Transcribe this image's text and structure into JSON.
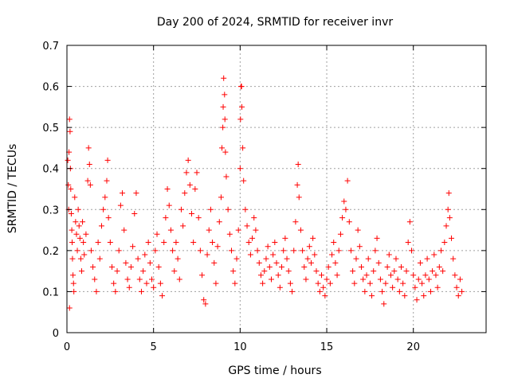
{
  "chart_data": {
    "type": "scatter",
    "title": "Day 200 of 2024, SRMTID for receiver invr",
    "xlabel": "GPS time / hours",
    "ylabel": "SRMTID / TECUs",
    "xlim": [
      0,
      24.2
    ],
    "ylim": [
      0,
      0.7
    ],
    "xticks": [
      0,
      5,
      10,
      15,
      20
    ],
    "yticks": [
      0,
      0.1,
      0.2,
      0.3,
      0.4,
      0.5,
      0.6,
      0.7
    ],
    "xtick_labels": [
      "0",
      "5",
      "10",
      "15",
      "20"
    ],
    "ytick_labels": [
      "0",
      "0.1",
      "0.2",
      "0.3",
      "0.4",
      "0.5",
      "0.6",
      "0.7"
    ],
    "grid": true,
    "marker": "+",
    "color": "#ff0000",
    "series": [
      {
        "name": "SRMTID",
        "points": [
          [
            0.05,
            0.42
          ],
          [
            0.08,
            0.36
          ],
          [
            0.1,
            0.3
          ],
          [
            0.12,
            0.44
          ],
          [
            0.15,
            0.52
          ],
          [
            0.18,
            0.49
          ],
          [
            0.2,
            0.4
          ],
          [
            0.22,
            0.35
          ],
          [
            0.25,
            0.29
          ],
          [
            0.28,
            0.25
          ],
          [
            0.3,
            0.22
          ],
          [
            0.32,
            0.18
          ],
          [
            0.35,
            0.14
          ],
          [
            0.38,
            0.12
          ],
          [
            0.4,
            0.1
          ],
          [
            0.15,
            0.06
          ],
          [
            0.45,
            0.33
          ],
          [
            0.5,
            0.27
          ],
          [
            0.55,
            0.24
          ],
          [
            0.6,
            0.2
          ],
          [
            0.65,
            0.3
          ],
          [
            0.7,
            0.26
          ],
          [
            0.75,
            0.23
          ],
          [
            0.8,
            0.18
          ],
          [
            0.85,
            0.15
          ],
          [
            0.9,
            0.27
          ],
          [
            0.95,
            0.22
          ],
          [
            1.0,
            0.19
          ],
          [
            1.1,
            0.24
          ],
          [
            1.2,
            0.37
          ],
          [
            1.25,
            0.45
          ],
          [
            1.3,
            0.41
          ],
          [
            1.35,
            0.36
          ],
          [
            1.4,
            0.2
          ],
          [
            1.5,
            0.16
          ],
          [
            1.6,
            0.13
          ],
          [
            1.7,
            0.1
          ],
          [
            1.8,
            0.22
          ],
          [
            1.9,
            0.18
          ],
          [
            2.0,
            0.26
          ],
          [
            2.1,
            0.3
          ],
          [
            2.2,
            0.33
          ],
          [
            2.3,
            0.37
          ],
          [
            2.35,
            0.42
          ],
          [
            2.4,
            0.28
          ],
          [
            2.5,
            0.22
          ],
          [
            2.6,
            0.16
          ],
          [
            2.7,
            0.12
          ],
          [
            2.8,
            0.1
          ],
          [
            2.9,
            0.15
          ],
          [
            3.0,
            0.2
          ],
          [
            3.1,
            0.31
          ],
          [
            3.2,
            0.34
          ],
          [
            3.3,
            0.25
          ],
          [
            3.4,
            0.17
          ],
          [
            3.5,
            0.13
          ],
          [
            3.6,
            0.11
          ],
          [
            3.7,
            0.16
          ],
          [
            3.8,
            0.21
          ],
          [
            3.9,
            0.29
          ],
          [
            4.0,
            0.34
          ],
          [
            4.1,
            0.18
          ],
          [
            4.2,
            0.13
          ],
          [
            4.3,
            0.1
          ],
          [
            4.4,
            0.15
          ],
          [
            4.5,
            0.19
          ],
          [
            4.6,
            0.12
          ],
          [
            4.7,
            0.22
          ],
          [
            4.8,
            0.17
          ],
          [
            4.9,
            0.13
          ],
          [
            5.0,
            0.11
          ],
          [
            5.1,
            0.2
          ],
          [
            5.2,
            0.24
          ],
          [
            5.3,
            0.16
          ],
          [
            5.4,
            0.12
          ],
          [
            5.5,
            0.09
          ],
          [
            5.6,
            0.22
          ],
          [
            5.7,
            0.28
          ],
          [
            5.8,
            0.35
          ],
          [
            5.9,
            0.31
          ],
          [
            6.0,
            0.25
          ],
          [
            6.1,
            0.2
          ],
          [
            6.2,
            0.15
          ],
          [
            6.3,
            0.22
          ],
          [
            6.4,
            0.18
          ],
          [
            6.5,
            0.13
          ],
          [
            6.6,
            0.3
          ],
          [
            6.7,
            0.26
          ],
          [
            6.8,
            0.34
          ],
          [
            6.9,
            0.39
          ],
          [
            7.0,
            0.42
          ],
          [
            7.1,
            0.36
          ],
          [
            7.2,
            0.29
          ],
          [
            7.3,
            0.22
          ],
          [
            7.4,
            0.35
          ],
          [
            7.5,
            0.39
          ],
          [
            7.6,
            0.28
          ],
          [
            7.7,
            0.2
          ],
          [
            7.8,
            0.14
          ],
          [
            7.9,
            0.08
          ],
          [
            8.0,
            0.07
          ],
          [
            8.1,
            0.19
          ],
          [
            8.2,
            0.25
          ],
          [
            8.3,
            0.3
          ],
          [
            8.4,
            0.22
          ],
          [
            8.5,
            0.17
          ],
          [
            8.6,
            0.12
          ],
          [
            8.7,
            0.21
          ],
          [
            8.8,
            0.27
          ],
          [
            8.9,
            0.33
          ],
          [
            8.95,
            0.45
          ],
          [
            9.0,
            0.5
          ],
          [
            9.02,
            0.55
          ],
          [
            9.05,
            0.62
          ],
          [
            9.1,
            0.58
          ],
          [
            9.12,
            0.52
          ],
          [
            9.15,
            0.44
          ],
          [
            9.2,
            0.38
          ],
          [
            9.3,
            0.3
          ],
          [
            9.4,
            0.24
          ],
          [
            9.5,
            0.2
          ],
          [
            9.6,
            0.15
          ],
          [
            9.7,
            0.12
          ],
          [
            9.8,
            0.18
          ],
          [
            9.9,
            0.25
          ],
          [
            10.0,
            0.4
          ],
          [
            10.02,
            0.52
          ],
          [
            10.05,
            0.6
          ],
          [
            10.08,
            0.6
          ],
          [
            10.1,
            0.55
          ],
          [
            10.15,
            0.45
          ],
          [
            10.2,
            0.37
          ],
          [
            10.3,
            0.3
          ],
          [
            10.4,
            0.26
          ],
          [
            10.5,
            0.22
          ],
          [
            10.6,
            0.19
          ],
          [
            10.7,
            0.23
          ],
          [
            10.8,
            0.28
          ],
          [
            10.9,
            0.25
          ],
          [
            11.0,
            0.2
          ],
          [
            11.1,
            0.17
          ],
          [
            11.2,
            0.14
          ],
          [
            11.3,
            0.12
          ],
          [
            11.4,
            0.15
          ],
          [
            11.5,
            0.18
          ],
          [
            11.6,
            0.21
          ],
          [
            11.7,
            0.16
          ],
          [
            11.8,
            0.13
          ],
          [
            11.9,
            0.19
          ],
          [
            12.0,
            0.22
          ],
          [
            12.1,
            0.17
          ],
          [
            12.2,
            0.14
          ],
          [
            12.3,
            0.11
          ],
          [
            12.4,
            0.16
          ],
          [
            12.5,
            0.2
          ],
          [
            12.6,
            0.23
          ],
          [
            12.7,
            0.18
          ],
          [
            12.8,
            0.15
          ],
          [
            12.9,
            0.12
          ],
          [
            13.0,
            0.1
          ],
          [
            13.1,
            0.2
          ],
          [
            13.2,
            0.27
          ],
          [
            13.3,
            0.36
          ],
          [
            13.35,
            0.41
          ],
          [
            13.4,
            0.33
          ],
          [
            13.5,
            0.25
          ],
          [
            13.6,
            0.2
          ],
          [
            13.7,
            0.16
          ],
          [
            13.8,
            0.13
          ],
          [
            13.9,
            0.18
          ],
          [
            14.0,
            0.21
          ],
          [
            14.1,
            0.17
          ],
          [
            14.2,
            0.23
          ],
          [
            14.3,
            0.19
          ],
          [
            14.4,
            0.15
          ],
          [
            14.5,
            0.12
          ],
          [
            14.6,
            0.1
          ],
          [
            14.7,
            0.14
          ],
          [
            14.8,
            0.11
          ],
          [
            14.9,
            0.09
          ],
          [
            15.0,
            0.13
          ],
          [
            15.1,
            0.16
          ],
          [
            15.2,
            0.12
          ],
          [
            15.3,
            0.19
          ],
          [
            15.4,
            0.22
          ],
          [
            15.5,
            0.17
          ],
          [
            15.6,
            0.14
          ],
          [
            15.7,
            0.2
          ],
          [
            15.8,
            0.24
          ],
          [
            15.9,
            0.28
          ],
          [
            16.0,
            0.32
          ],
          [
            16.1,
            0.3
          ],
          [
            16.2,
            0.37
          ],
          [
            16.3,
            0.27
          ],
          [
            16.4,
            0.2
          ],
          [
            16.5,
            0.15
          ],
          [
            16.6,
            0.12
          ],
          [
            16.7,
            0.18
          ],
          [
            16.8,
            0.25
          ],
          [
            16.9,
            0.21
          ],
          [
            17.0,
            0.16
          ],
          [
            17.1,
            0.13
          ],
          [
            17.2,
            0.1
          ],
          [
            17.3,
            0.14
          ],
          [
            17.4,
            0.18
          ],
          [
            17.5,
            0.12
          ],
          [
            17.6,
            0.09
          ],
          [
            17.7,
            0.15
          ],
          [
            17.8,
            0.2
          ],
          [
            17.9,
            0.23
          ],
          [
            18.0,
            0.17
          ],
          [
            18.1,
            0.13
          ],
          [
            18.2,
            0.1
          ],
          [
            18.3,
            0.07
          ],
          [
            18.4,
            0.12
          ],
          [
            18.5,
            0.16
          ],
          [
            18.6,
            0.19
          ],
          [
            18.7,
            0.14
          ],
          [
            18.8,
            0.11
          ],
          [
            18.9,
            0.15
          ],
          [
            19.0,
            0.18
          ],
          [
            19.1,
            0.13
          ],
          [
            19.2,
            0.1
          ],
          [
            19.3,
            0.16
          ],
          [
            19.4,
            0.12
          ],
          [
            19.5,
            0.09
          ],
          [
            19.6,
            0.15
          ],
          [
            19.7,
            0.22
          ],
          [
            19.8,
            0.27
          ],
          [
            19.9,
            0.2
          ],
          [
            20.0,
            0.14
          ],
          [
            20.1,
            0.11
          ],
          [
            20.2,
            0.08
          ],
          [
            20.3,
            0.13
          ],
          [
            20.4,
            0.17
          ],
          [
            20.5,
            0.12
          ],
          [
            20.6,
            0.09
          ],
          [
            20.7,
            0.14
          ],
          [
            20.8,
            0.18
          ],
          [
            20.9,
            0.13
          ],
          [
            21.0,
            0.1
          ],
          [
            21.1,
            0.15
          ],
          [
            21.2,
            0.19
          ],
          [
            21.3,
            0.14
          ],
          [
            21.4,
            0.11
          ],
          [
            21.5,
            0.16
          ],
          [
            21.6,
            0.2
          ],
          [
            21.7,
            0.15
          ],
          [
            21.8,
            0.22
          ],
          [
            21.9,
            0.26
          ],
          [
            22.0,
            0.3
          ],
          [
            22.05,
            0.34
          ],
          [
            22.1,
            0.28
          ],
          [
            22.2,
            0.23
          ],
          [
            22.3,
            0.18
          ],
          [
            22.4,
            0.14
          ],
          [
            22.5,
            0.11
          ],
          [
            22.6,
            0.09
          ],
          [
            22.7,
            0.13
          ],
          [
            22.8,
            0.1
          ]
        ]
      }
    ]
  }
}
